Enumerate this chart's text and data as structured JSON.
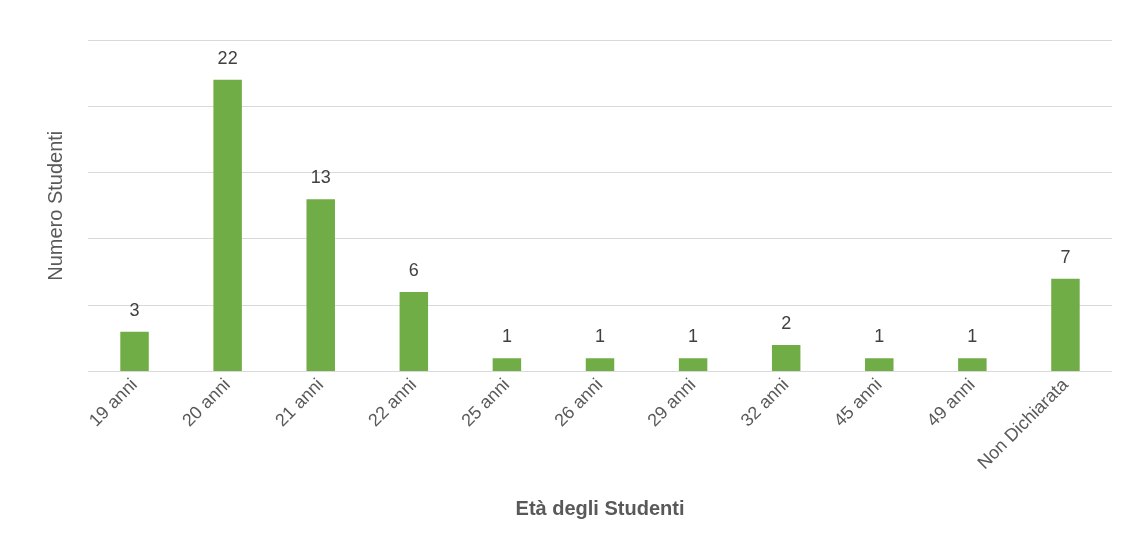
{
  "chart_data": {
    "type": "bar",
    "xlabel": "Età degli Studenti",
    "ylabel": "Numero Studenti",
    "categories": [
      "19 anni",
      "20 anni",
      "21 anni",
      "22 anni",
      "25 anni",
      "26 anni",
      "29 anni",
      "32 anni",
      "45 anni",
      "49 anni",
      "Non Dichiarata"
    ],
    "values": [
      3,
      22,
      13,
      6,
      1,
      1,
      1,
      2,
      1,
      1,
      7
    ],
    "color": "#70ad47",
    "ylim": [
      0,
      25
    ],
    "yticks": [
      {
        "value": 0,
        "label": null
      },
      {
        "value": 5,
        "label": null
      },
      {
        "value": 10,
        "label": null
      },
      {
        "value": 15,
        "label": null
      },
      {
        "value": 20,
        "label": null
      },
      {
        "value": 25,
        "label": null
      }
    ],
    "tick_labels": "x",
    "grid": "y",
    "data_labels": true,
    "legend": false
  }
}
